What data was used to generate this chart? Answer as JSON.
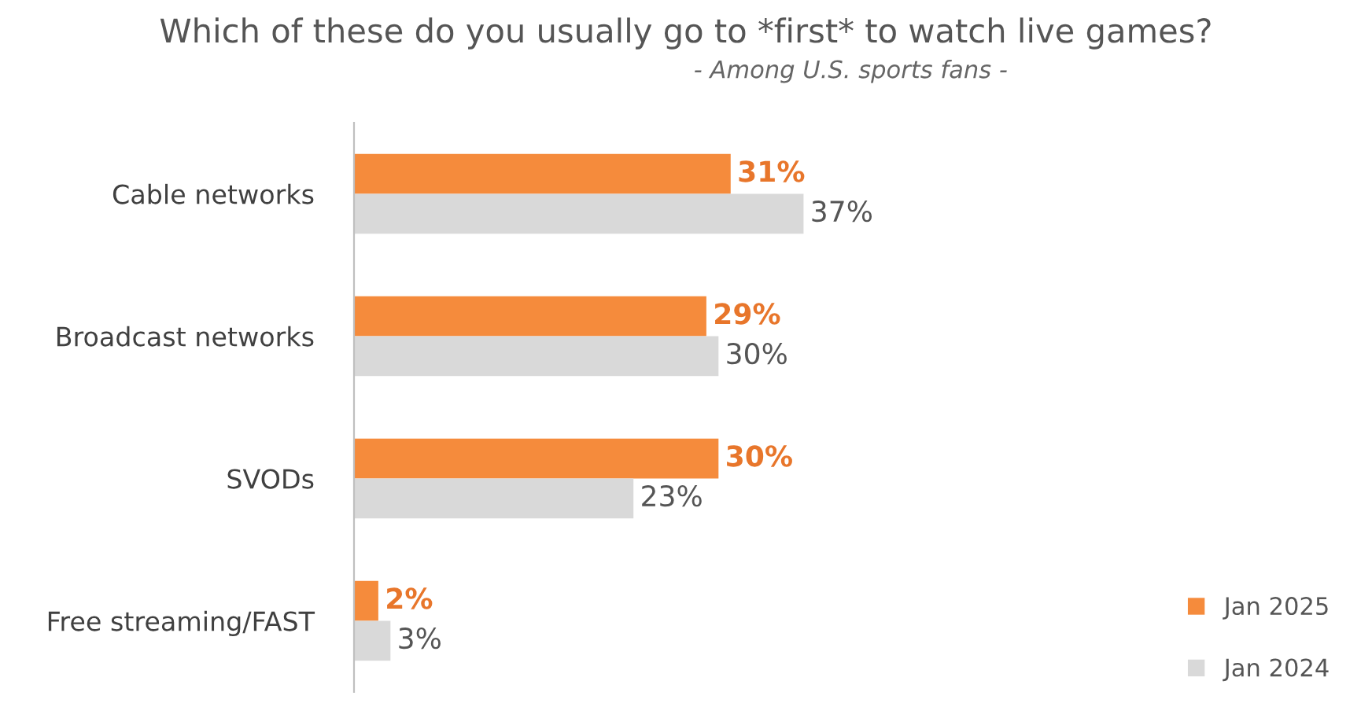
{
  "chart_data": {
    "type": "bar",
    "orientation": "horizontal",
    "title": "Which of these do you usually go to *first* to watch live games?",
    "subtitle": "- Among U.S. sports fans -",
    "categories": [
      "Cable networks",
      "Broadcast networks",
      "SVODs",
      "Free streaming/FAST"
    ],
    "series": [
      {
        "name": "Jan 2025",
        "color": "#f58b3c",
        "values": [
          31,
          29,
          30,
          2
        ],
        "value_labels": [
          "31%",
          "29%",
          "30%",
          "2%"
        ]
      },
      {
        "name": "Jan 2024",
        "color": "#d9d9d9",
        "values": [
          37,
          30,
          23,
          3
        ],
        "value_labels": [
          "37%",
          "30%",
          "23%",
          "3%"
        ]
      }
    ],
    "legend": "bottom right",
    "grid": false
  }
}
